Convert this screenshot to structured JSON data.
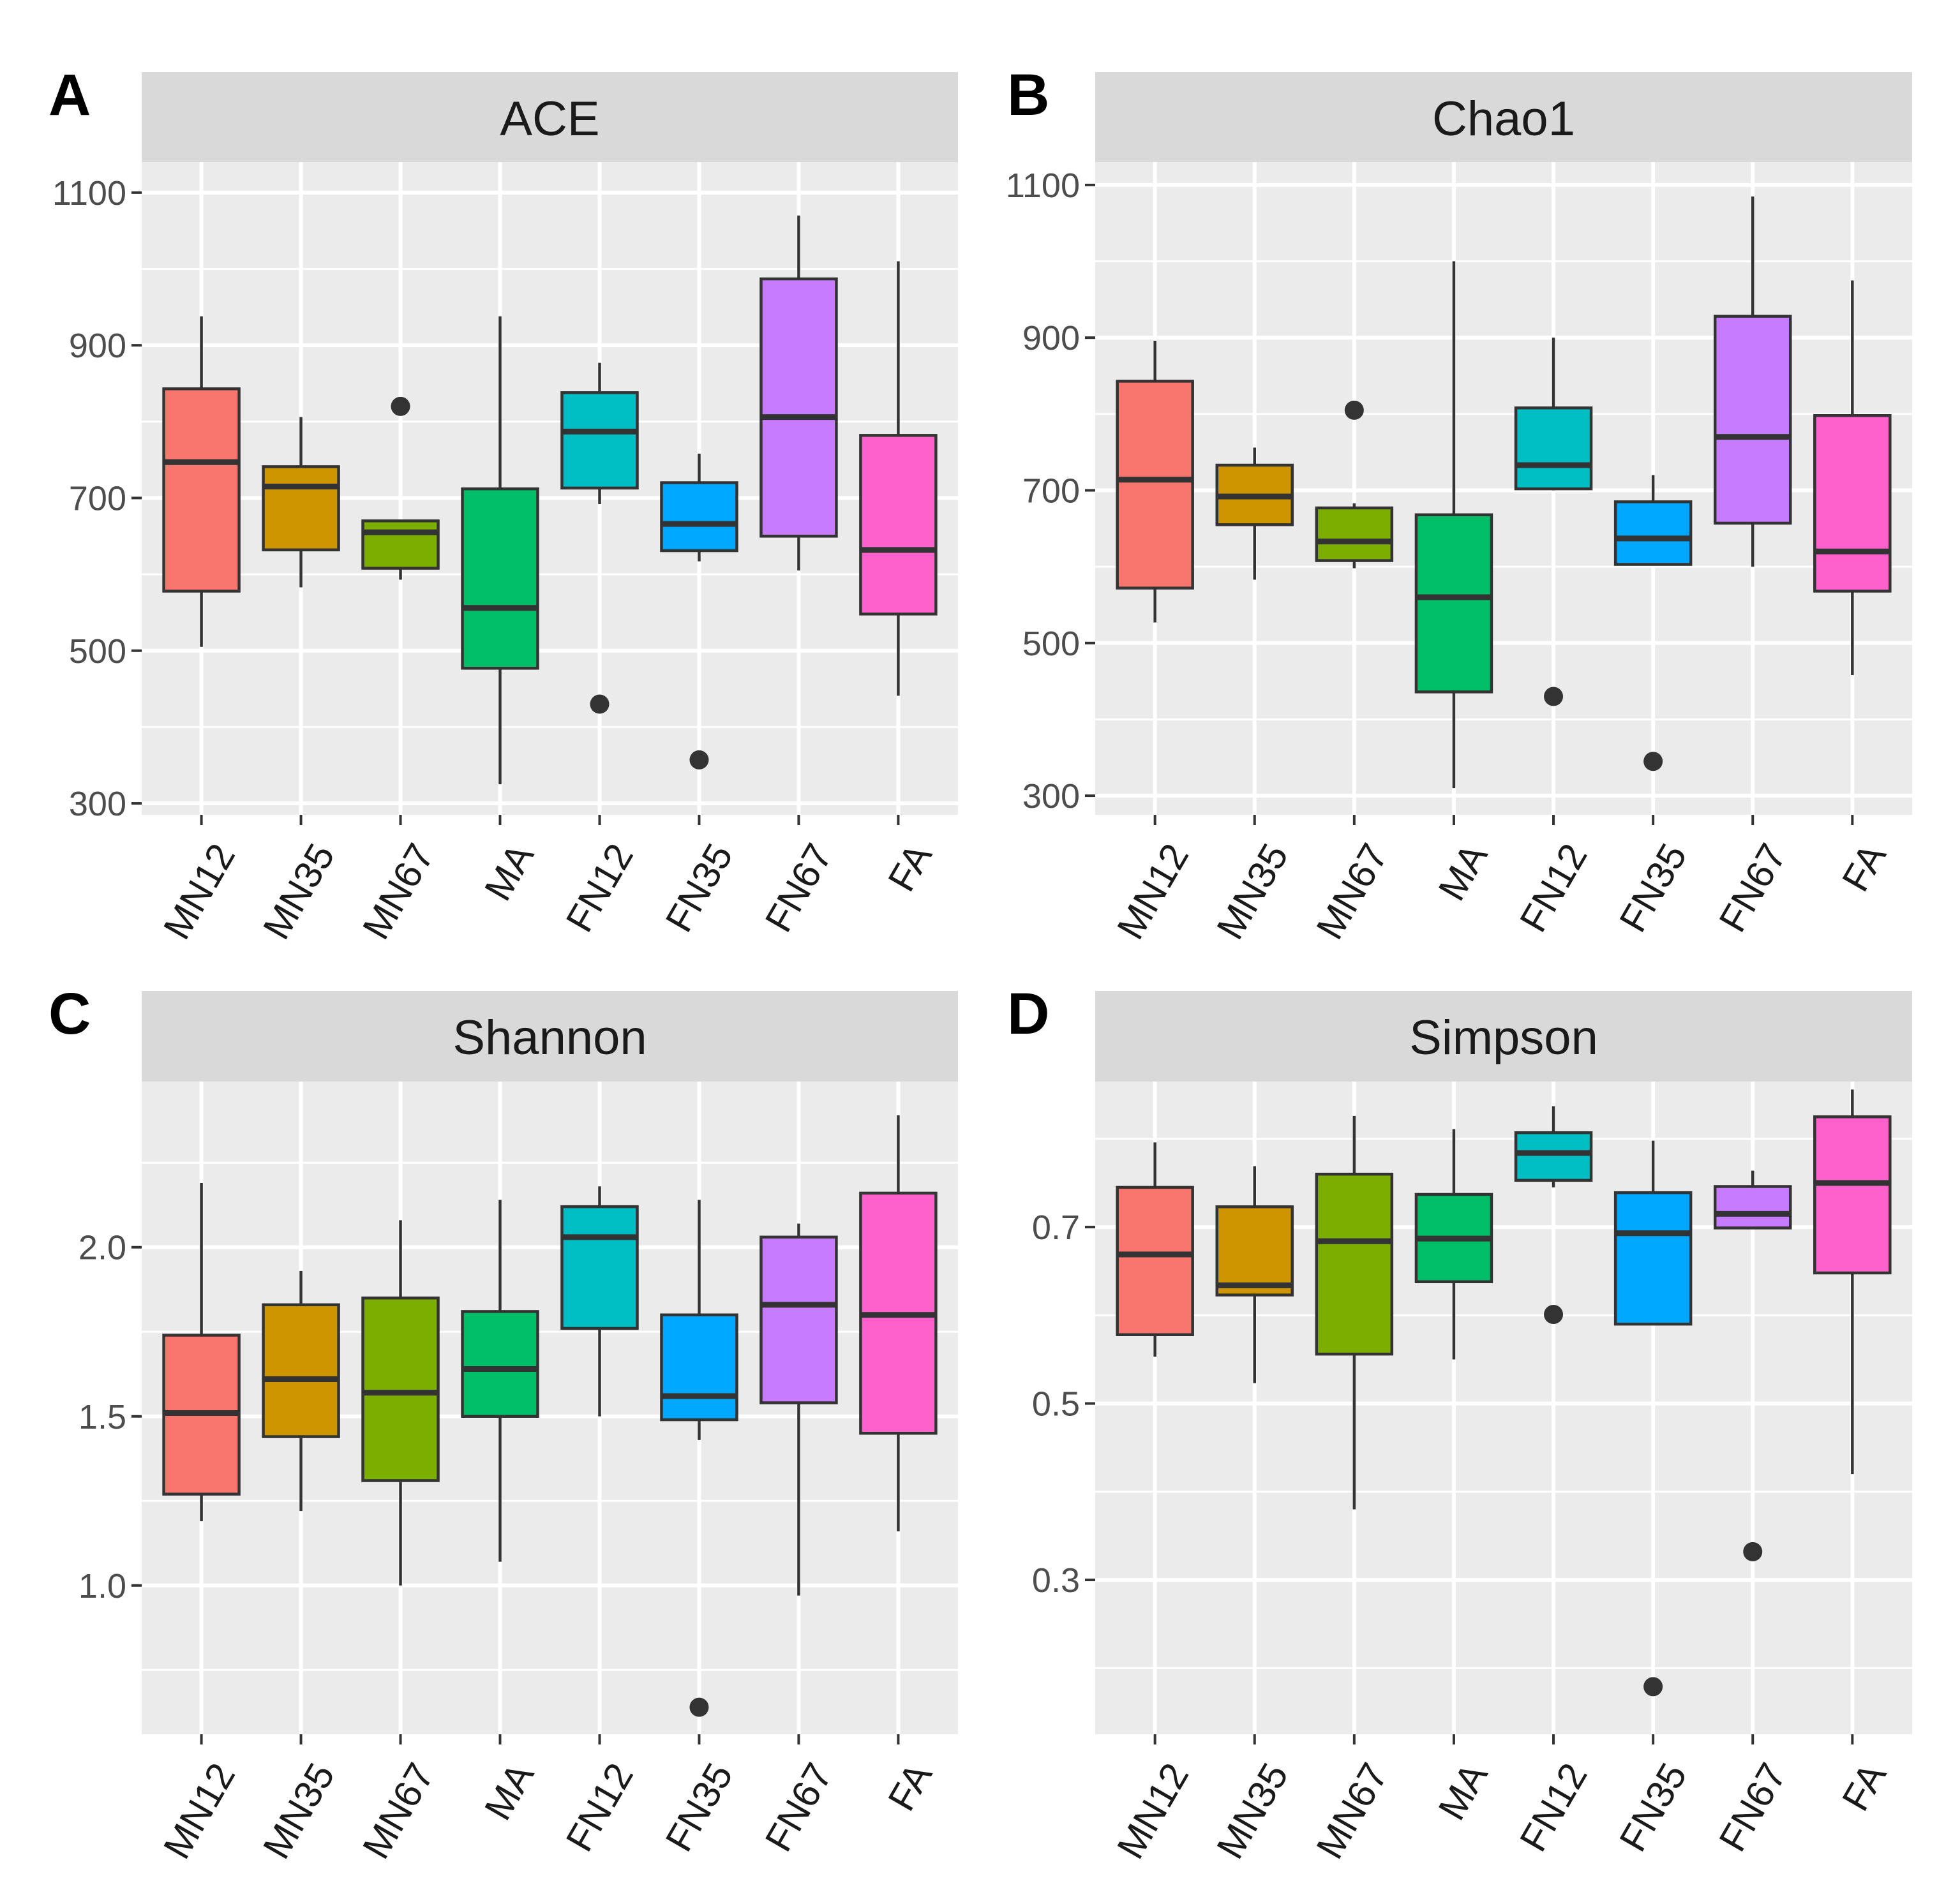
{
  "chart_data": [
    {
      "panel": "A",
      "type": "box",
      "title": "ACE",
      "categories": [
        "MN12",
        "MN35",
        "MN67",
        "MA",
        "FN12",
        "FN35",
        "FN67",
        "FA"
      ],
      "colors": [
        "#F8766D",
        "#CD9600",
        "#7CAE00",
        "#00BE67",
        "#00BFC4",
        "#00A9FF",
        "#C77CFF",
        "#FF61CC"
      ],
      "yticks": [
        300,
        500,
        700,
        900,
        1100
      ],
      "ytick_labels": [
        "300",
        "500",
        "700",
        "900",
        "1100"
      ],
      "ylim": [
        285,
        1140
      ],
      "boxes": [
        {
          "name": "MN12",
          "lo": 505,
          "q1": 578,
          "med": 747,
          "q3": 843,
          "hi": 938,
          "outliers": []
        },
        {
          "name": "MN35",
          "lo": 583,
          "q1": 632,
          "med": 715,
          "q3": 741,
          "hi": 806,
          "outliers": []
        },
        {
          "name": "MN67",
          "lo": 593,
          "q1": 608,
          "med": 655,
          "q3": 670,
          "hi": 670,
          "outliers": [
            820
          ]
        },
        {
          "name": "MA",
          "lo": 325,
          "q1": 477,
          "med": 556,
          "q3": 712,
          "hi": 938,
          "outliers": []
        },
        {
          "name": "FN12",
          "lo": 692,
          "q1": 713,
          "med": 787,
          "q3": 838,
          "hi": 877,
          "outliers": [
            430
          ]
        },
        {
          "name": "FN35",
          "lo": 617,
          "q1": 631,
          "med": 666,
          "q3": 720,
          "hi": 758,
          "outliers": [
            357
          ]
        },
        {
          "name": "FN67",
          "lo": 605,
          "q1": 650,
          "med": 806,
          "q3": 987,
          "hi": 1070,
          "outliers": []
        },
        {
          "name": "FA",
          "lo": 441,
          "q1": 548,
          "med": 632,
          "q3": 782,
          "hi": 1010,
          "outliers": []
        }
      ]
    },
    {
      "panel": "B",
      "type": "box",
      "title": "Chao1",
      "categories": [
        "MN12",
        "MN35",
        "MN67",
        "MA",
        "FN12",
        "FN35",
        "FN67",
        "FA"
      ],
      "colors": [
        "#F8766D",
        "#CD9600",
        "#7CAE00",
        "#00BE67",
        "#00BFC4",
        "#00A9FF",
        "#C77CFF",
        "#FF61CC"
      ],
      "yticks": [
        300,
        500,
        700,
        900,
        1100
      ],
      "ytick_labels": [
        "300",
        "500",
        "700",
        "900",
        "1100"
      ],
      "ylim": [
        275,
        1130
      ],
      "boxes": [
        {
          "name": "MN12",
          "lo": 527,
          "q1": 572,
          "med": 714,
          "q3": 843,
          "hi": 896,
          "outliers": []
        },
        {
          "name": "MN35",
          "lo": 583,
          "q1": 655,
          "med": 692,
          "q3": 733,
          "hi": 756,
          "outliers": []
        },
        {
          "name": "MN67",
          "lo": 598,
          "q1": 608,
          "med": 633,
          "q3": 677,
          "hi": 683,
          "outliers": [
            805
          ]
        },
        {
          "name": "MA",
          "lo": 310,
          "q1": 436,
          "med": 560,
          "q3": 668,
          "hi": 1000,
          "outliers": []
        },
        {
          "name": "FN12",
          "lo": 700,
          "q1": 702,
          "med": 733,
          "q3": 808,
          "hi": 900,
          "outliers": [
            430
          ]
        },
        {
          "name": "FN35",
          "lo": 603,
          "q1": 603,
          "med": 637,
          "q3": 685,
          "hi": 720,
          "outliers": [
            345
          ]
        },
        {
          "name": "FN67",
          "lo": 600,
          "q1": 657,
          "med": 770,
          "q3": 928,
          "hi": 1085,
          "outliers": []
        },
        {
          "name": "FA",
          "lo": 458,
          "q1": 568,
          "med": 620,
          "q3": 798,
          "hi": 975,
          "outliers": []
        }
      ]
    },
    {
      "panel": "C",
      "type": "box",
      "title": "Shannon",
      "categories": [
        "MN12",
        "MN35",
        "MN67",
        "MA",
        "FN12",
        "FN35",
        "FN67",
        "FA"
      ],
      "colors": [
        "#F8766D",
        "#CD9600",
        "#7CAE00",
        "#00BE67",
        "#00BFC4",
        "#00A9FF",
        "#C77CFF",
        "#FF61CC"
      ],
      "yticks": [
        1.0,
        1.5,
        2.0
      ],
      "ytick_labels": [
        "1.0",
        "1.5",
        "2.0"
      ],
      "ylim": [
        0.56,
        2.49
      ],
      "boxes": [
        {
          "name": "MN12",
          "lo": 1.19,
          "q1": 1.27,
          "med": 1.51,
          "q3": 1.74,
          "hi": 2.19,
          "outliers": []
        },
        {
          "name": "MN35",
          "lo": 1.22,
          "q1": 1.44,
          "med": 1.61,
          "q3": 1.83,
          "hi": 1.93,
          "outliers": []
        },
        {
          "name": "MN67",
          "lo": 1.0,
          "q1": 1.31,
          "med": 1.57,
          "q3": 1.85,
          "hi": 2.08,
          "outliers": []
        },
        {
          "name": "MA",
          "lo": 1.07,
          "q1": 1.5,
          "med": 1.64,
          "q3": 1.81,
          "hi": 2.14,
          "outliers": []
        },
        {
          "name": "FN12",
          "lo": 1.5,
          "q1": 1.76,
          "med": 2.03,
          "q3": 2.12,
          "hi": 2.18,
          "outliers": []
        },
        {
          "name": "FN35",
          "lo": 1.43,
          "q1": 1.49,
          "med": 1.56,
          "q3": 1.8,
          "hi": 2.14,
          "outliers": [
            0.64
          ]
        },
        {
          "name": "FN67",
          "lo": 0.97,
          "q1": 1.54,
          "med": 1.83,
          "q3": 2.03,
          "hi": 2.07,
          "outliers": []
        },
        {
          "name": "FA",
          "lo": 1.16,
          "q1": 1.45,
          "med": 1.8,
          "q3": 2.16,
          "hi": 2.39,
          "outliers": []
        }
      ]
    },
    {
      "panel": "D",
      "type": "box",
      "title": "Simpson",
      "categories": [
        "MN12",
        "MN35",
        "MN67",
        "MA",
        "FN12",
        "FN35",
        "FN67",
        "FA"
      ],
      "colors": [
        "#F8766D",
        "#CD9600",
        "#7CAE00",
        "#00BE67",
        "#00BFC4",
        "#00A9FF",
        "#C77CFF",
        "#FF61CC"
      ],
      "yticks": [
        0.3,
        0.5,
        0.7
      ],
      "ytick_labels": [
        "0.3",
        "0.5",
        "0.7"
      ],
      "ylim": [
        0.125,
        0.865
      ],
      "boxes": [
        {
          "name": "MN12",
          "lo": 0.553,
          "q1": 0.578,
          "med": 0.669,
          "q3": 0.745,
          "hi": 0.796,
          "outliers": []
        },
        {
          "name": "MN35",
          "lo": 0.523,
          "q1": 0.623,
          "med": 0.634,
          "q3": 0.723,
          "hi": 0.769,
          "outliers": []
        },
        {
          "name": "MN67",
          "lo": 0.38,
          "q1": 0.556,
          "med": 0.684,
          "q3": 0.76,
          "hi": 0.826,
          "outliers": []
        },
        {
          "name": "MA",
          "lo": 0.55,
          "q1": 0.638,
          "med": 0.687,
          "q3": 0.737,
          "hi": 0.811,
          "outliers": []
        },
        {
          "name": "FN12",
          "lo": 0.745,
          "q1": 0.753,
          "med": 0.784,
          "q3": 0.807,
          "hi": 0.837,
          "outliers": [
            0.601
          ]
        },
        {
          "name": "FN35",
          "lo": 0.59,
          "q1": 0.59,
          "med": 0.693,
          "q3": 0.739,
          "hi": 0.798,
          "outliers": [
            0.179
          ]
        },
        {
          "name": "FN67",
          "lo": 0.699,
          "q1": 0.699,
          "med": 0.715,
          "q3": 0.746,
          "hi": 0.764,
          "outliers": [
            0.332
          ]
        },
        {
          "name": "FA",
          "lo": 0.42,
          "q1": 0.648,
          "med": 0.75,
          "q3": 0.825,
          "hi": 0.856,
          "outliers": []
        }
      ]
    }
  ]
}
